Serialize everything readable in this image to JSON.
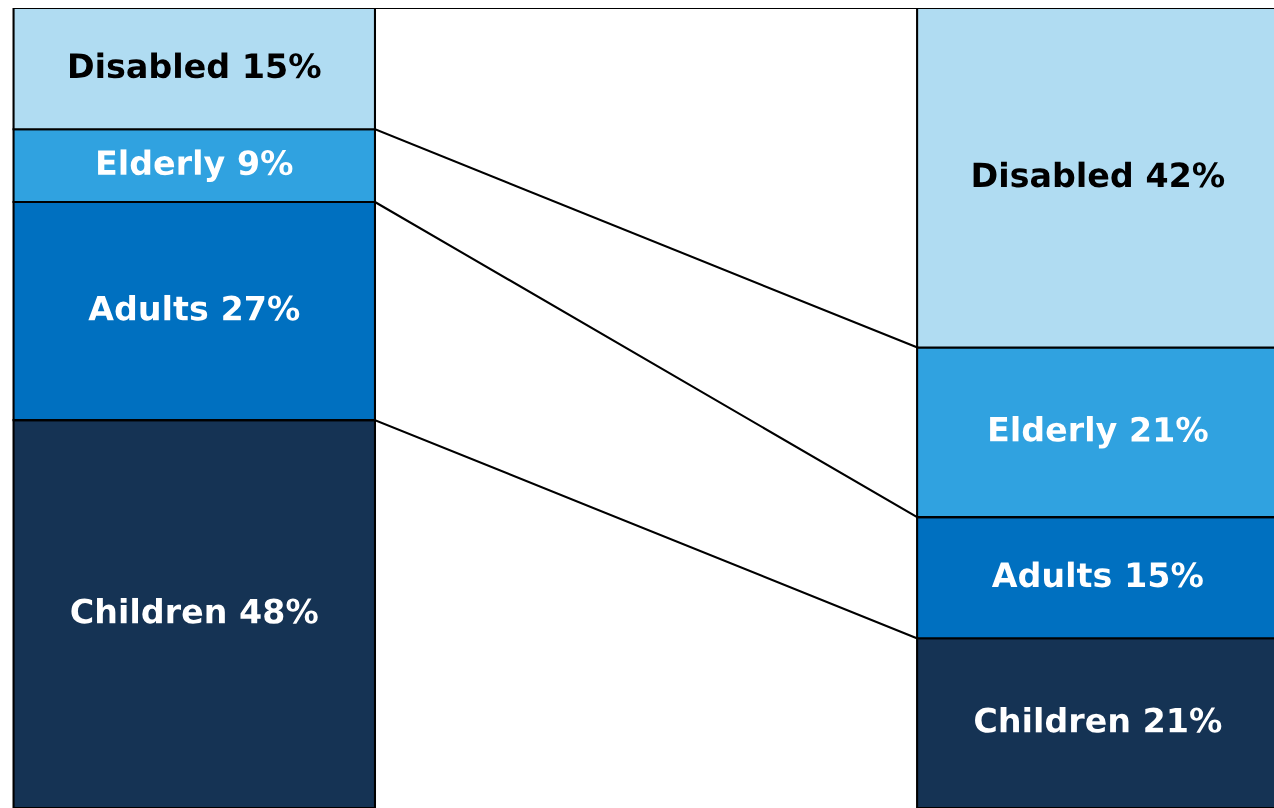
{
  "chart_data": {
    "type": "bar",
    "stacked": true,
    "categories": [
      null,
      null
    ],
    "legend": false,
    "series": [
      {
        "name": "Children",
        "color": "#153354",
        "values": [
          48,
          21
        ],
        "value_labels": [
          "48%",
          "21%"
        ]
      },
      {
        "name": "Adults",
        "color": "#0070c0",
        "values": [
          27,
          15
        ],
        "value_labels": [
          "27%",
          "15%"
        ]
      },
      {
        "name": "Elderly",
        "color": "#30a2e0",
        "values": [
          9,
          21
        ],
        "value_labels": [
          "9%",
          "21%"
        ]
      },
      {
        "name": "Disabled",
        "color": "#b0dcf2",
        "values": [
          15,
          42
        ],
        "value_labels": [
          "15%",
          "42%"
        ]
      }
    ]
  }
}
